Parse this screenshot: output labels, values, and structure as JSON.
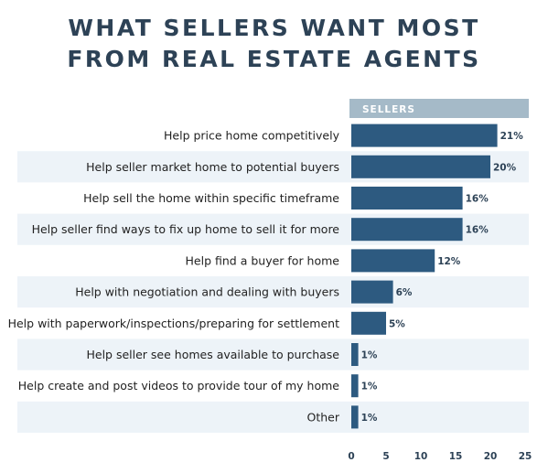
{
  "chart_data": {
    "type": "bar",
    "orientation": "horizontal",
    "title": [
      "WHAT SELLERS WANT MOST",
      "FROM REAL ESTATE AGENTS"
    ],
    "column_header": "SELLERS",
    "categories": [
      "Help price home competitively",
      "Help seller market home to potential buyers",
      "Help sell the home within specific timeframe",
      "Help seller find ways to fix up home to sell it for more",
      "Help find a buyer for home",
      "Help with negotiation and dealing with buyers",
      "Help with paperwork/inspections/preparing for settlement",
      "Help seller see homes available to purchase",
      "Help create and post videos to provide tour of my home",
      "Other"
    ],
    "series": [
      {
        "values": [
          21,
          20,
          16,
          16,
          12,
          6,
          5,
          1,
          1,
          1
        ],
        "value_labels": [
          "21%",
          "20%",
          "16%",
          "16%",
          "12%",
          "6%",
          "5%",
          "1%",
          "1%",
          "1%"
        ]
      }
    ],
    "xlim": [
      0,
      25
    ],
    "xticks": [
      0,
      5,
      10,
      15,
      20,
      25
    ],
    "xtick_labels": [
      "0",
      "5",
      "10",
      "15",
      "20",
      "25"
    ],
    "grid": false,
    "row_banding": true,
    "colors": {
      "bar": "#2d5a80",
      "header_band": "#a5bac8",
      "header_text": "#ffffff",
      "alt_row": "#edf3f8",
      "title": "#2d4256",
      "label_text": "#222222",
      "value_text": "#2d4256"
    }
  }
}
